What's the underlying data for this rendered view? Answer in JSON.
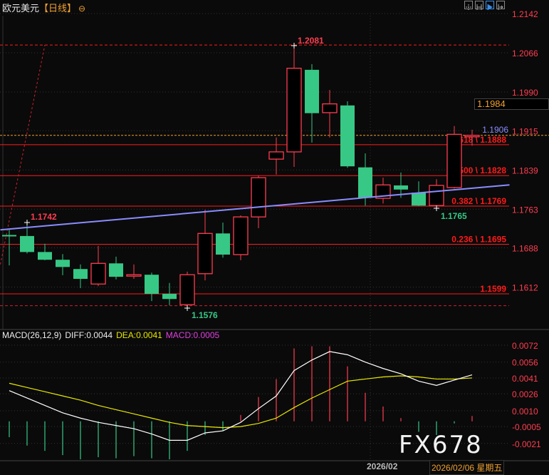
{
  "header": {
    "symbol": "欧元美元",
    "period": "【日线】",
    "zoom_icon": "circle-minus-icon",
    "tools": [
      "crosshair-icon",
      "fit-range-icon",
      "play-right-icon",
      "scroll-end-icon"
    ]
  },
  "colors": {
    "up": "#ff3d50",
    "down": "#37c885",
    "trendline": "#8a8cff",
    "fib": "#ff1a1a",
    "current": "#f0a030",
    "diff": "#ffffff",
    "dea": "#e8e800",
    "grid": "#333333",
    "axis_text": "#ff3d50"
  },
  "price_axis": {
    "ticks": [
      "1.2142",
      "1.2066",
      "1.1990",
      "1.1915",
      "1.1839",
      "1.1763",
      "1.1688",
      "1.1612"
    ]
  },
  "current_price": {
    "value": "1.1906",
    "crosshair_value": "1.1984"
  },
  "annotations": {
    "high_label": "1.2081",
    "high_value": 1.2081,
    "left_high_label": "1.1742",
    "low_label": "1.1576",
    "low_value": 1.1576,
    "recent_low_label": "1.1765",
    "trendline_label": "1.1906"
  },
  "fib_levels": [
    {
      "label": "0.618 \\ 1.1888",
      "price": 1.1888
    },
    {
      "label": "0.500 \\ 1.1828",
      "price": 1.1828
    },
    {
      "label": "0.382 \\ 1.1769",
      "price": 1.1769
    },
    {
      "label": "0.236 \\ 1.1695",
      "price": 1.1695
    },
    {
      "label": "1.1599",
      "price": 1.1599
    }
  ],
  "trendline": {
    "from": [
      -0.5,
      1.1723
    ],
    "to": [
      28.1,
      1.181
    ]
  },
  "diagonal_dashed": {
    "from": [
      -0.5,
      1.1656
    ],
    "to": [
      2,
      1.2081
    ]
  },
  "chart_data": {
    "type": "candlestick",
    "ohlc": [
      [
        1.1713,
        1.1723,
        1.1654,
        1.1712
      ],
      [
        1.1711,
        1.1742,
        1.1677,
        1.168
      ],
      [
        1.168,
        1.1696,
        1.1664,
        1.1665
      ],
      [
        1.1665,
        1.1676,
        1.1635,
        1.1651
      ],
      [
        1.1647,
        1.1656,
        1.161,
        1.1628
      ],
      [
        1.1618,
        1.1692,
        1.1614,
        1.1658
      ],
      [
        1.1658,
        1.1671,
        1.1627,
        1.1632
      ],
      [
        1.1635,
        1.1656,
        1.1628,
        1.1636
      ],
      [
        1.1636,
        1.164,
        1.1585,
        1.1599
      ],
      [
        1.1599,
        1.162,
        1.1577,
        1.1589
      ],
      [
        1.1578,
        1.1642,
        1.1576,
        1.1636
      ],
      [
        1.1638,
        1.1762,
        1.1625,
        1.1716
      ],
      [
        1.1716,
        1.1737,
        1.1669,
        1.1675
      ],
      [
        1.1675,
        1.1751,
        1.1664,
        1.1748
      ],
      [
        1.1748,
        1.1828,
        1.1726,
        1.1824
      ],
      [
        1.186,
        1.1902,
        1.183,
        1.1874
      ],
      [
        1.1874,
        1.2081,
        1.1845,
        1.2036
      ],
      [
        1.2033,
        1.2044,
        1.1892,
        1.1949
      ],
      [
        1.195,
        1.1994,
        1.1902,
        1.1967
      ],
      [
        1.1964,
        1.1972,
        1.1843,
        1.1846
      ],
      [
        1.1844,
        1.1871,
        1.177,
        1.1785
      ],
      [
        1.1784,
        1.1824,
        1.1774,
        1.181
      ],
      [
        1.1809,
        1.1834,
        1.1785,
        1.1801
      ],
      [
        1.1795,
        1.1817,
        1.1769,
        1.177
      ],
      [
        1.177,
        1.1821,
        1.1765,
        1.1809
      ],
      [
        1.1805,
        1.1924,
        1.1803,
        1.1908
      ],
      [
        1.1906,
        1.1917,
        1.1886,
        1.1906
      ]
    ],
    "ylim": [
      1.156,
      1.2142
    ],
    "x_labels": [
      "2026/02"
    ],
    "current_date": "2026/02/06 星期五"
  },
  "macd": {
    "legend": {
      "name": "MACD(26,12,9)",
      "diff": "DIFF:0.0044",
      "dea": "DEA:0.0041",
      "macd": "MACD:0.0005"
    },
    "ticks": [
      "0.0072",
      "0.0056",
      "0.0041",
      "0.0026",
      "0.0010",
      "-0.0005",
      "-0.0021"
    ],
    "diff": [
      0.0029,
      0.0022,
      0.0015,
      0.0008,
      0.0003,
      -0.0001,
      -0.0004,
      -0.0007,
      -0.0012,
      -0.0018,
      -0.0018,
      -0.0011,
      -0.0009,
      -0.0001,
      0.0012,
      0.0024,
      0.0048,
      0.0058,
      0.0066,
      0.0063,
      0.0056,
      0.005,
      0.0045,
      0.0038,
      0.0034,
      0.0039,
      0.0044
    ],
    "dea": [
      0.0036,
      0.0032,
      0.0028,
      0.0024,
      0.002,
      0.0015,
      0.0011,
      0.0007,
      0.0003,
      -0.0001,
      -0.0004,
      -0.0005,
      -0.0006,
      -0.0005,
      -0.0002,
      0.0003,
      0.0013,
      0.0022,
      0.003,
      0.0038,
      0.004,
      0.0042,
      0.0043,
      0.0042,
      0.004,
      0.004,
      0.0041
    ],
    "hist": [
      -0.0015,
      -0.0023,
      -0.0028,
      -0.0032,
      -0.0036,
      -0.0034,
      -0.0035,
      -0.0033,
      -0.0035,
      -0.0036,
      -0.0028,
      -0.0013,
      -0.0009,
      0.0006,
      0.0023,
      0.004,
      0.0069,
      0.0071,
      0.0071,
      0.0052,
      0.0027,
      0.0014,
      0.0003,
      -0.001,
      -0.0013,
      -0.0002,
      0.0005
    ]
  },
  "watermark": "FX678"
}
